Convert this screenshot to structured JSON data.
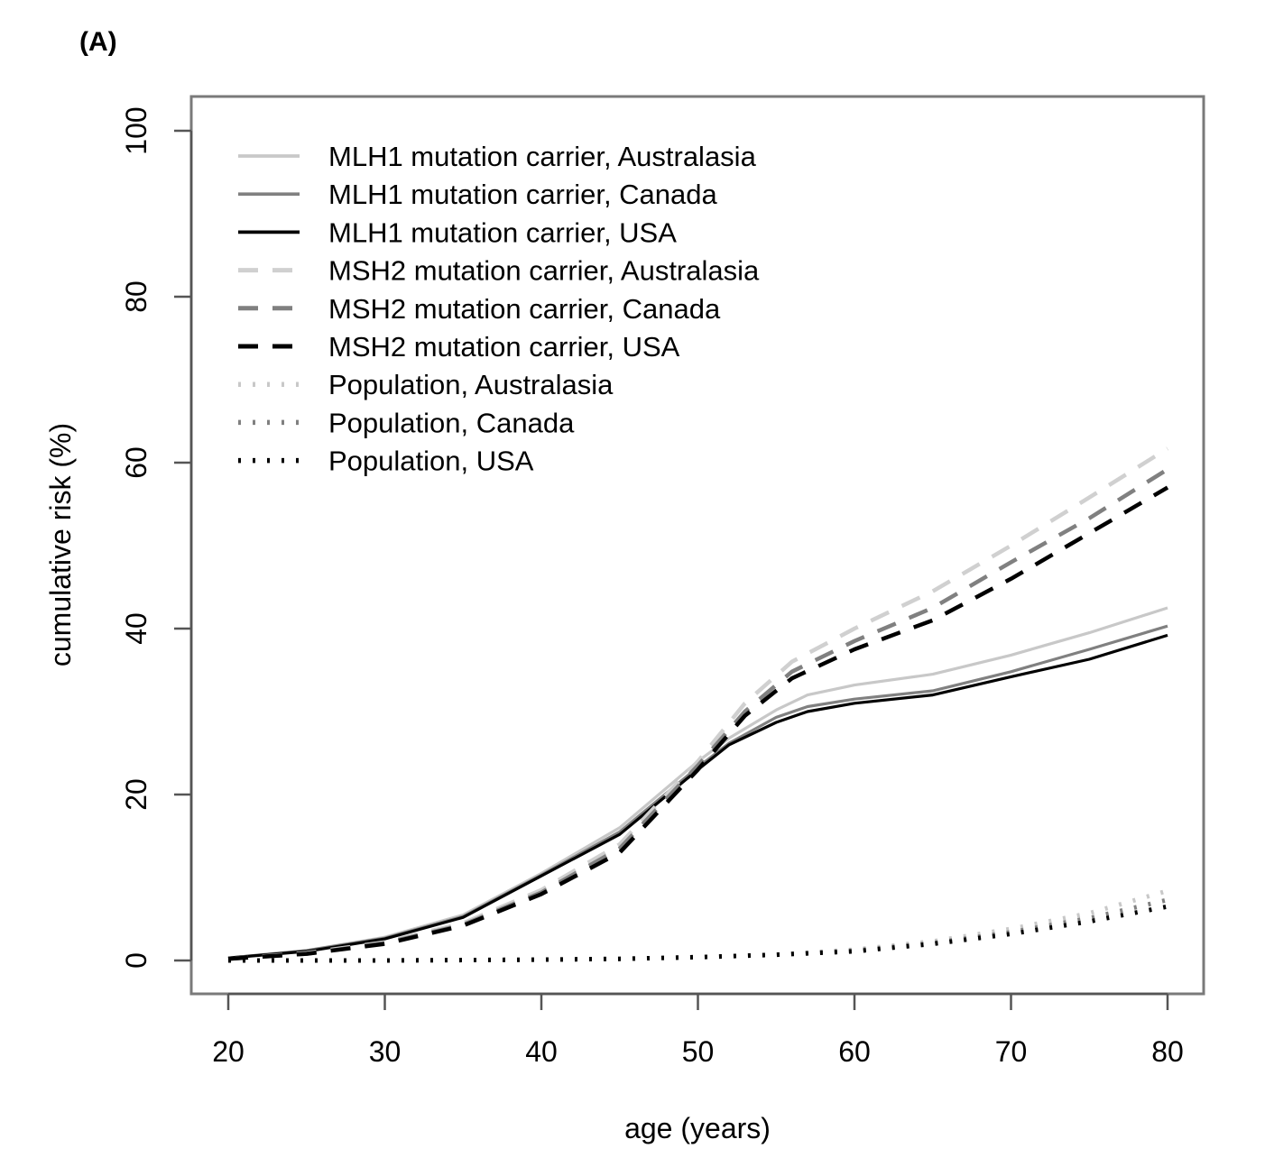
{
  "panel_label": "(A)",
  "chart_data": {
    "type": "line",
    "title": "",
    "xlabel": "age (years)",
    "ylabel": "cumulative risk (%)",
    "xlim": [
      20,
      80
    ],
    "ylim": [
      0,
      100
    ],
    "xticks": [
      20,
      30,
      40,
      50,
      60,
      70,
      80
    ],
    "yticks": [
      0,
      20,
      40,
      60,
      80,
      100
    ],
    "grid": false,
    "legend_position": "top-left",
    "series": [
      {
        "name": "MLH1 mutation carrier, Australasia",
        "color": "#c8c8c8",
        "dash": "solid",
        "x": [
          20,
          25,
          30,
          35,
          40,
          45,
          50,
          52,
          55,
          57,
          60,
          65,
          70,
          75,
          80
        ],
        "y": [
          0.3,
          1.2,
          2.8,
          5.5,
          10.5,
          16,
          24,
          26.8,
          30.2,
          32,
          33.2,
          34.5,
          36.8,
          39.5,
          42.5
        ]
      },
      {
        "name": "MLH1 mutation carrier, Canada",
        "color": "#808080",
        "dash": "solid",
        "x": [
          20,
          25,
          30,
          35,
          40,
          45,
          50,
          52,
          55,
          57,
          60,
          65,
          70,
          75,
          80
        ],
        "y": [
          0.3,
          1.2,
          2.7,
          5.3,
          10.3,
          15.5,
          23.3,
          26.2,
          29.3,
          30.6,
          31.5,
          32.5,
          34.8,
          37.5,
          40.3
        ]
      },
      {
        "name": "MLH1 mutation carrier, USA",
        "color": "#000000",
        "dash": "solid",
        "x": [
          20,
          25,
          30,
          35,
          40,
          45,
          50,
          52,
          55,
          57,
          60,
          65,
          70,
          75,
          80
        ],
        "y": [
          0.3,
          1.1,
          2.6,
          5.2,
          10.2,
          15.2,
          23,
          26,
          28.7,
          30,
          31,
          32,
          34.2,
          36.3,
          39.2
        ]
      },
      {
        "name": "MSH2 mutation carrier, Australasia",
        "color": "#d0d0d0",
        "dash": "long",
        "x": [
          20,
          25,
          30,
          35,
          40,
          45,
          50,
          53,
          56,
          60,
          65,
          70,
          75,
          80
        ],
        "y": [
          0.2,
          0.9,
          2.2,
          4.5,
          8.5,
          14,
          24,
          31,
          36,
          40,
          44.5,
          50,
          55.8,
          61.7
        ]
      },
      {
        "name": "MSH2 mutation carrier, Canada",
        "color": "#808080",
        "dash": "long",
        "x": [
          20,
          25,
          30,
          35,
          40,
          45,
          50,
          53,
          56,
          60,
          65,
          70,
          75,
          80
        ],
        "y": [
          0.2,
          0.8,
          2.1,
          4.3,
          8.2,
          13.5,
          23.5,
          30,
          34.8,
          38.5,
          42.5,
          48,
          53.3,
          59.2
        ]
      },
      {
        "name": "MSH2 mutation carrier, USA",
        "color": "#000000",
        "dash": "long",
        "x": [
          20,
          25,
          30,
          35,
          40,
          45,
          50,
          53,
          56,
          60,
          65,
          70,
          75,
          80
        ],
        "y": [
          0.2,
          0.8,
          2.0,
          4.2,
          8.0,
          13.0,
          23,
          29.5,
          34,
          37.5,
          41,
          46,
          51.5,
          57
        ]
      },
      {
        "name": "Population, Australasia",
        "color": "#c8c8c8",
        "dash": "dot",
        "x": [
          20,
          30,
          40,
          45,
          50,
          55,
          60,
          65,
          70,
          75,
          80
        ],
        "y": [
          0,
          0,
          0.1,
          0.2,
          0.4,
          0.7,
          1.3,
          2.3,
          3.8,
          5.7,
          8.4
        ]
      },
      {
        "name": "Population, Canada",
        "color": "#808080",
        "dash": "dot",
        "x": [
          20,
          30,
          40,
          45,
          50,
          55,
          60,
          65,
          70,
          75,
          80
        ],
        "y": [
          0,
          0,
          0.1,
          0.2,
          0.4,
          0.7,
          1.2,
          2.1,
          3.4,
          5.1,
          7.3
        ]
      },
      {
        "name": "Population, USA",
        "color": "#000000",
        "dash": "dot",
        "x": [
          20,
          30,
          40,
          45,
          50,
          55,
          60,
          65,
          70,
          75,
          80
        ],
        "y": [
          0,
          0,
          0.1,
          0.2,
          0.4,
          0.7,
          1.1,
          2.0,
          3.2,
          4.7,
          6.5
        ]
      }
    ]
  }
}
